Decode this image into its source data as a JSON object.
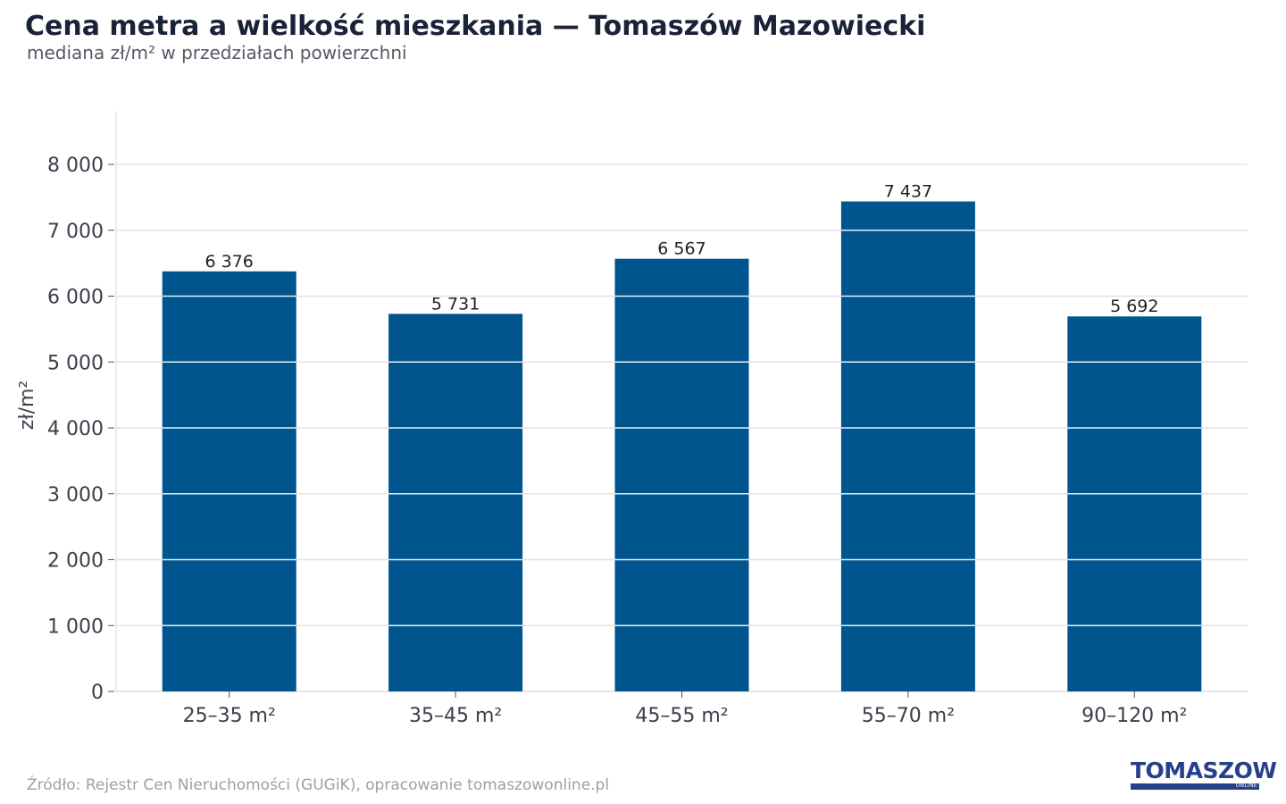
{
  "header": {
    "title": "Cena metra a wielkość mieszkania — Tomaszów Mazowiecki",
    "subtitle": "mediana zł/m² w przedziałach powierzchni"
  },
  "footer": {
    "source": "Źródło: Rejestr Cen Nieruchomości (GUGiK), opracowanie tomaszowonline.pl"
  },
  "logo": {
    "name": "TOMASZOW",
    "sub": "ONLINE"
  },
  "colors": {
    "bar": "#00558e",
    "grid": "#e3e3e3",
    "axis_text": "#3b3f4a"
  },
  "chart_data": {
    "type": "bar",
    "title": "Cena metra a wielkość mieszkania — Tomaszów Mazowiecki",
    "subtitle": "mediana zł/m² w przedziałach powierzchni",
    "xlabel": "",
    "ylabel": "zł/m²",
    "categories": [
      "25–35 m²",
      "35–45 m²",
      "45–55 m²",
      "55–70 m²",
      "90–120 m²"
    ],
    "values": [
      6376,
      5731,
      6567,
      7437,
      5692
    ],
    "value_labels": [
      "6 376",
      "5 731",
      "6 567",
      "7 437",
      "5 692"
    ],
    "ylim": [
      0,
      8800
    ],
    "yticks": [
      0,
      1000,
      2000,
      3000,
      4000,
      5000,
      6000,
      7000,
      8000
    ],
    "ytick_labels": [
      "0",
      "1 000",
      "2 000",
      "3 000",
      "4 000",
      "5 000",
      "6 000",
      "7 000",
      "8 000"
    ],
    "grid": true,
    "legend": "none"
  }
}
